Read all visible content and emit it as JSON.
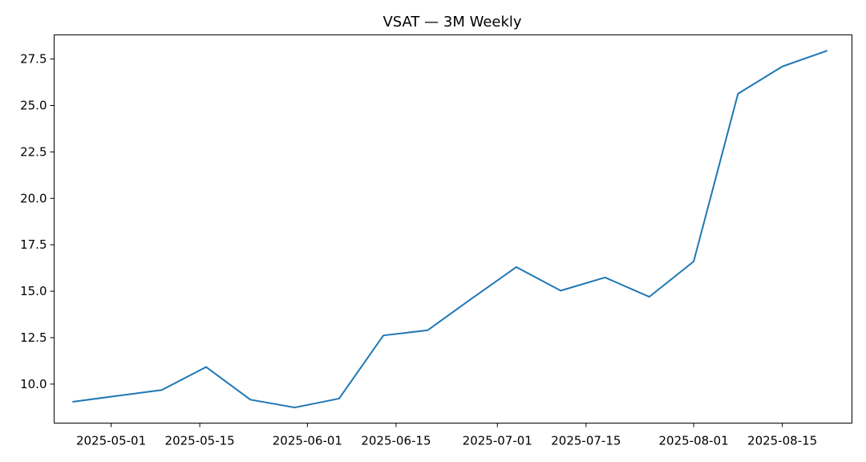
{
  "chart_data": {
    "type": "line",
    "title": "VSAT — 3M Weekly",
    "xlabel": "",
    "ylabel": "",
    "grid": false,
    "legend": "none",
    "colors": {
      "line": "#1f77b4",
      "axes": "#000000",
      "background": "#ffffff"
    },
    "xlim": [
      "2025-04-22",
      "2025-08-26"
    ],
    "ylim": [
      7.9,
      28.8
    ],
    "x_ticks": [
      "2025-05-01",
      "2025-05-15",
      "2025-06-01",
      "2025-06-15",
      "2025-07-01",
      "2025-07-15",
      "2025-08-01",
      "2025-08-15"
    ],
    "y_ticks": [
      "10.0",
      "12.5",
      "15.0",
      "17.5",
      "20.0",
      "22.5",
      "25.0",
      "27.5"
    ],
    "series": [
      {
        "x": [
          "2025-04-25",
          "2025-05-02",
          "2025-05-09",
          "2025-05-16",
          "2025-05-23",
          "2025-05-30",
          "2025-06-06",
          "2025-06-13",
          "2025-06-20",
          "2025-06-27",
          "2025-07-04",
          "2025-07-11",
          "2025-07-18",
          "2025-07-25",
          "2025-08-01",
          "2025-08-08",
          "2025-08-15",
          "2025-08-22"
        ],
        "values": [
          9.05,
          9.37,
          9.68,
          10.92,
          9.16,
          8.74,
          9.22,
          12.62,
          12.9,
          14.62,
          16.3,
          15.03,
          15.74,
          14.7,
          16.6,
          25.63,
          27.1,
          27.94
        ]
      }
    ]
  }
}
